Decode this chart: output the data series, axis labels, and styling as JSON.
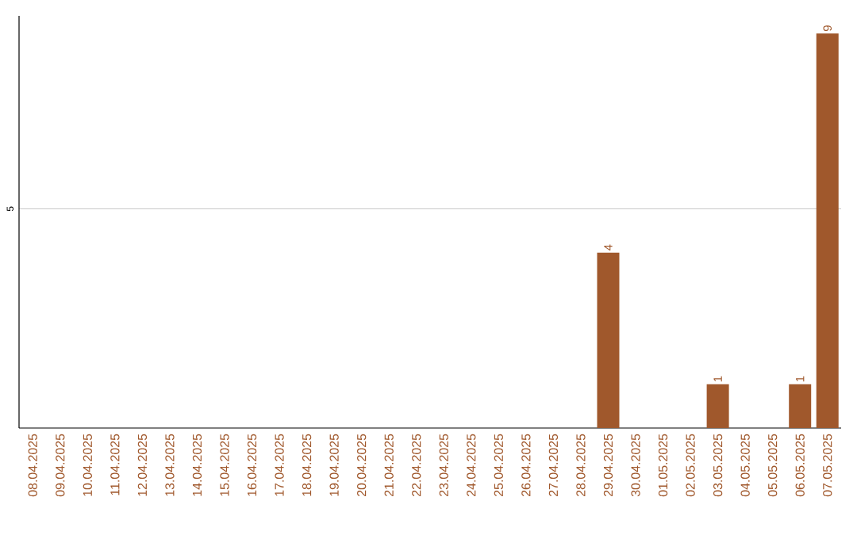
{
  "chart_data": {
    "type": "bar",
    "categories": [
      "08.04.2025",
      "09.04.2025",
      "10.04.2025",
      "11.04.2025",
      "12.04.2025",
      "13.04.2025",
      "14.04.2025",
      "15.04.2025",
      "16.04.2025",
      "17.04.2025",
      "18.04.2025",
      "19.04.2025",
      "20.04.2025",
      "21.04.2025",
      "22.04.2025",
      "23.04.2025",
      "24.04.2025",
      "25.04.2025",
      "26.04.2025",
      "27.04.2025",
      "28.04.2025",
      "29.04.2025",
      "30.04.2025",
      "01.05.2025",
      "02.05.2025",
      "03.05.2025",
      "04.05.2025",
      "05.05.2025",
      "06.05.2025",
      "07.05.2025"
    ],
    "values": [
      null,
      null,
      null,
      null,
      null,
      null,
      null,
      null,
      null,
      null,
      null,
      null,
      null,
      null,
      null,
      null,
      null,
      null,
      null,
      null,
      null,
      4,
      null,
      null,
      null,
      1,
      null,
      null,
      1,
      9
    ],
    "data_labels": true,
    "color": "#a0582c",
    "ylim": [
      0,
      9.4
    ],
    "yticks": [
      5
    ],
    "grid": "y"
  }
}
